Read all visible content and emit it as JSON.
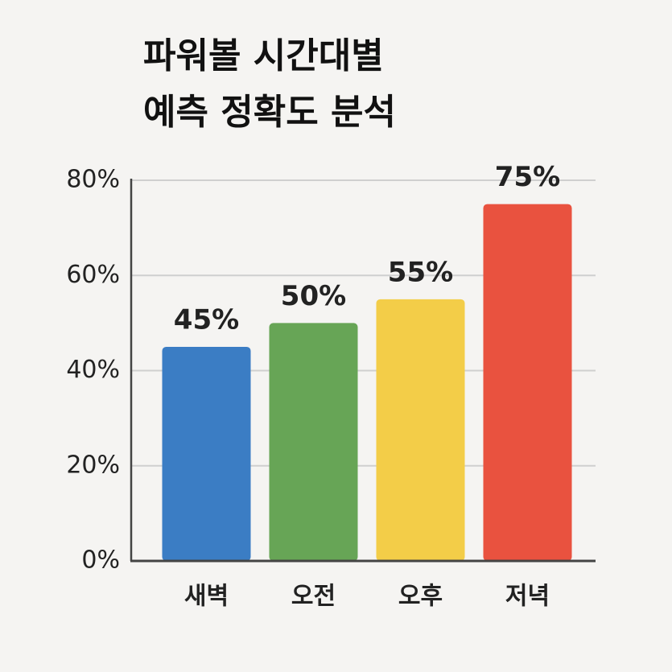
{
  "chart_data": {
    "type": "bar",
    "title": [
      "파워볼 시간대별",
      "예측 정확도 분석"
    ],
    "categories": [
      "새벽",
      "오전",
      "오후",
      "저녁"
    ],
    "values": [
      45,
      50,
      55,
      75
    ],
    "value_labels": [
      "45%",
      "50%",
      "55%",
      "75%"
    ],
    "colors": [
      "#3b7dc4",
      "#67a556",
      "#f3cd48",
      "#e9523f"
    ],
    "ylim": [
      0,
      80
    ],
    "yticks": [
      {
        "value": 0,
        "label": "0%"
      },
      {
        "value": 20,
        "label": "20%"
      },
      {
        "value": 40,
        "label": "40%"
      },
      {
        "value": 60,
        "label": "60%"
      },
      {
        "value": 80,
        "label": "80%"
      }
    ],
    "grid": true
  }
}
